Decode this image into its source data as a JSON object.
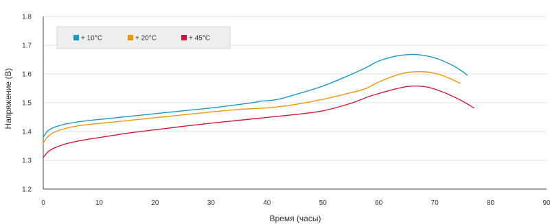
{
  "chart_data": {
    "type": "line",
    "title": "",
    "xlabel": "Время (часы)",
    "ylabel": "Напряжение (В)",
    "xlim": [
      0,
      90
    ],
    "ylim": [
      1.2,
      1.8
    ],
    "xticks": [
      "0",
      "10",
      "20",
      "30",
      "40",
      "50",
      "60",
      "70",
      "80",
      "90"
    ],
    "yticks": [
      "1.2",
      "1.3",
      "1.4",
      "1.5",
      "1.6",
      "1.7",
      "1.8"
    ],
    "grid": "horizontal",
    "legend_position": "top-left",
    "series": [
      {
        "name": "+ 10°C",
        "color": "#1a97c9",
        "x": [
          0,
          0.5,
          1,
          2,
          4,
          6,
          8,
          10,
          15,
          20,
          25,
          30,
          35,
          38,
          39,
          40,
          42,
          45,
          50,
          55,
          58,
          60,
          63,
          65,
          67,
          70,
          73,
          75,
          75.8
        ],
        "y": [
          1.38,
          1.395,
          1.405,
          1.415,
          1.426,
          1.433,
          1.438,
          1.442,
          1.452,
          1.462,
          1.472,
          1.482,
          1.494,
          1.502,
          1.506,
          1.507,
          1.512,
          1.528,
          1.558,
          1.598,
          1.625,
          1.645,
          1.662,
          1.667,
          1.667,
          1.656,
          1.632,
          1.608,
          1.596
        ]
      },
      {
        "name": "+ 20°C",
        "color": "#f0950a",
        "x": [
          0,
          0.5,
          1,
          2,
          4,
          6,
          8,
          10,
          15,
          20,
          25,
          30,
          35,
          40,
          45,
          50,
          55,
          57.5,
          60,
          63,
          65,
          67,
          69,
          71,
          73,
          74.5
        ],
        "y": [
          1.36,
          1.375,
          1.385,
          1.398,
          1.411,
          1.419,
          1.424,
          1.428,
          1.438,
          1.448,
          1.458,
          1.468,
          1.477,
          1.482,
          1.494,
          1.512,
          1.535,
          1.548,
          1.572,
          1.595,
          1.605,
          1.608,
          1.606,
          1.597,
          1.582,
          1.568
        ]
      },
      {
        "name": "+ 45°C",
        "color": "#cc1a3a",
        "x": [
          0,
          0.5,
          1,
          2,
          4,
          6,
          8,
          10,
          15,
          20,
          25,
          30,
          35,
          40,
          45,
          50,
          55,
          58,
          60,
          63,
          65,
          67,
          69,
          72,
          75,
          77
        ],
        "y": [
          1.31,
          1.322,
          1.332,
          1.343,
          1.357,
          1.366,
          1.373,
          1.379,
          1.394,
          1.406,
          1.418,
          1.429,
          1.439,
          1.449,
          1.459,
          1.472,
          1.498,
          1.52,
          1.532,
          1.548,
          1.556,
          1.558,
          1.553,
          1.533,
          1.505,
          1.482
        ]
      }
    ]
  }
}
